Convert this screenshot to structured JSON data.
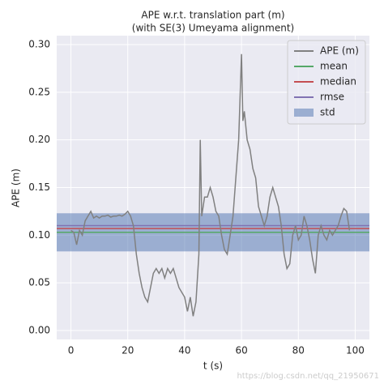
{
  "chart_data": {
    "type": "line",
    "title": "APE w.r.t. translation part (m)",
    "subtitle": "(with SE(3) Umeyama alignment)",
    "x_label": "t (s)",
    "y_label": "APE (m)",
    "xlim": [
      -5,
      105
    ],
    "ylim": [
      -0.0094,
      0.3094
    ],
    "xticks": [
      0,
      20,
      40,
      60,
      80,
      100
    ],
    "yticks": [
      {
        "value": 0,
        "label": "0.00"
      },
      {
        "value": 0.05,
        "label": "0.05"
      },
      {
        "value": 0.1,
        "label": "0.10"
      },
      {
        "value": 0.15,
        "label": "0.15"
      },
      {
        "value": 0.2,
        "label": "0.20"
      },
      {
        "value": 0.25,
        "label": "0.25"
      },
      {
        "value": 0.3,
        "label": "0.30"
      }
    ],
    "grid": true,
    "legend": "upper right",
    "series": [
      {
        "name": "APE (m)",
        "color": "#808080",
        "x": [
          0,
          1,
          2,
          3,
          4,
          5,
          6,
          7,
          8,
          9,
          10,
          11,
          12,
          13,
          14,
          15,
          16,
          17,
          18,
          19,
          20,
          21,
          22,
          23,
          24,
          25,
          26,
          27,
          28,
          29,
          30,
          31,
          32,
          33,
          34,
          35,
          36,
          37,
          38,
          39,
          40,
          41,
          42,
          43,
          44,
          45,
          45.5,
          46,
          47,
          48,
          49,
          50,
          51,
          52,
          53,
          54,
          55,
          56,
          57,
          58,
          59,
          60,
          60.5,
          61,
          62,
          63,
          64,
          65,
          66,
          67,
          68,
          69,
          70,
          71,
          72,
          73,
          74,
          75,
          76,
          77,
          78,
          79,
          80,
          81,
          82,
          83,
          84,
          85,
          86,
          87,
          88,
          89,
          90,
          91,
          92,
          93,
          94,
          95,
          96,
          97,
          98
        ],
        "values": [
          0.105,
          0.103,
          0.09,
          0.105,
          0.1,
          0.115,
          0.12,
          0.125,
          0.118,
          0.12,
          0.118,
          0.12,
          0.12,
          0.121,
          0.119,
          0.12,
          0.12,
          0.121,
          0.12,
          0.122,
          0.125,
          0.12,
          0.11,
          0.08,
          0.06,
          0.045,
          0.035,
          0.03,
          0.045,
          0.06,
          0.065,
          0.06,
          0.065,
          0.055,
          0.065,
          0.06,
          0.065,
          0.055,
          0.045,
          0.04,
          0.035,
          0.02,
          0.035,
          0.015,
          0.03,
          0.08,
          0.2,
          0.12,
          0.14,
          0.14,
          0.15,
          0.14,
          0.125,
          0.12,
          0.1,
          0.085,
          0.08,
          0.1,
          0.12,
          0.16,
          0.2,
          0.29,
          0.22,
          0.23,
          0.2,
          0.19,
          0.17,
          0.16,
          0.13,
          0.12,
          0.11,
          0.12,
          0.14,
          0.15,
          0.14,
          0.13,
          0.11,
          0.08,
          0.065,
          0.07,
          0.1,
          0.11,
          0.095,
          0.1,
          0.12,
          0.11,
          0.095,
          0.075,
          0.06,
          0.1,
          0.11,
          0.1,
          0.095,
          0.105,
          0.1,
          0.105,
          0.11,
          0.12,
          0.128,
          0.125,
          0.105
        ]
      }
    ],
    "reference_lines": [
      {
        "name": "mean",
        "color": "#55a868",
        "value": 0.103
      },
      {
        "name": "median",
        "color": "#c44e52",
        "value": 0.107
      },
      {
        "name": "rmse",
        "color": "#8172b2",
        "value": 0.11
      }
    ],
    "std_band": {
      "name": "std",
      "color": "#4c72b0",
      "value": 0.02
    }
  },
  "watermark": "https://blog.csdn.net/qq_21950671"
}
